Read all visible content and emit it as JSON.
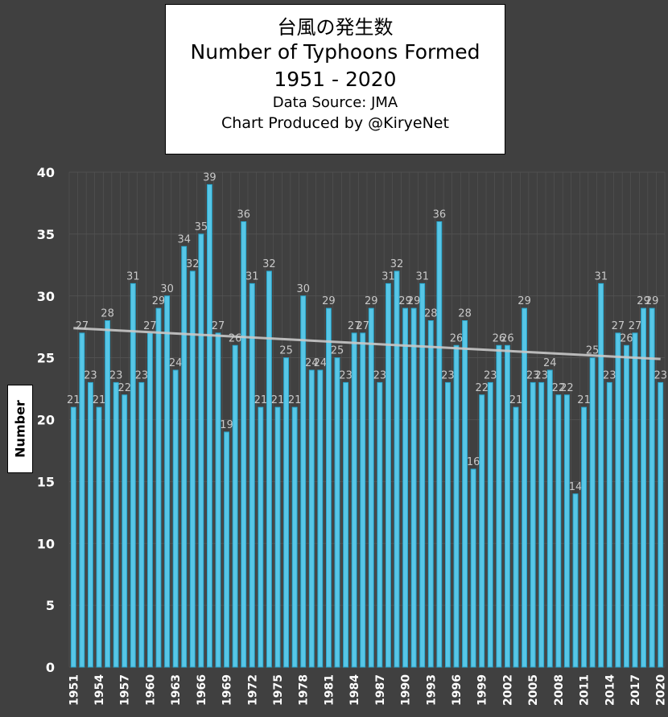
{
  "chart_data": {
    "type": "bar",
    "title": "台風の発生数",
    "title_lines": [
      "台風の発生数",
      "Number of Typhoons Formed",
      "1951 - 2020",
      "Data Source: JMA",
      "Chart Produced by @KiryeNet"
    ],
    "ylabel": "Number",
    "xlabel": "",
    "ylim": [
      0,
      40
    ],
    "yticks": [
      0,
      5,
      10,
      15,
      20,
      25,
      30,
      35,
      40
    ],
    "grid": true,
    "x": [
      1951,
      1952,
      1953,
      1954,
      1955,
      1956,
      1957,
      1958,
      1959,
      1960,
      1961,
      1962,
      1963,
      1964,
      1965,
      1966,
      1967,
      1968,
      1969,
      1970,
      1971,
      1972,
      1973,
      1974,
      1975,
      1976,
      1977,
      1978,
      1979,
      1980,
      1981,
      1982,
      1983,
      1984,
      1985,
      1986,
      1987,
      1988,
      1989,
      1990,
      1991,
      1992,
      1993,
      1994,
      1995,
      1996,
      1997,
      1998,
      1999,
      2000,
      2001,
      2002,
      2003,
      2004,
      2005,
      2006,
      2007,
      2008,
      2009,
      2010,
      2011,
      2012,
      2013,
      2014,
      2015,
      2016,
      2017,
      2018,
      2019,
      2020
    ],
    "xtick_labels": [
      "1951",
      "1954",
      "1957",
      "1960",
      "1963",
      "1966",
      "1969",
      "1972",
      "1975",
      "1978",
      "1981",
      "1984",
      "1987",
      "1990",
      "1993",
      "1996",
      "1999",
      "2002",
      "2005",
      "2008",
      "2011",
      "2014",
      "2017",
      "2020"
    ],
    "values": [
      21,
      27,
      23,
      21,
      28,
      23,
      22,
      31,
      23,
      27,
      29,
      30,
      24,
      34,
      32,
      35,
      39,
      27,
      19,
      26,
      36,
      31,
      21,
      32,
      21,
      25,
      21,
      30,
      24,
      24,
      29,
      25,
      23,
      27,
      27,
      29,
      23,
      31,
      32,
      29,
      29,
      31,
      28,
      36,
      23,
      26,
      28,
      16,
      22,
      23,
      26,
      26,
      21,
      29,
      23,
      23,
      24,
      22,
      22,
      14,
      21,
      25,
      31,
      23,
      27,
      26,
      27,
      29,
      29,
      23
    ],
    "trendline": {
      "start": [
        1951,
        27.4
      ],
      "end": [
        2020,
        24.9
      ]
    },
    "colors": {
      "bar": "#57c6e6",
      "bar_edge": "#2aa6cc",
      "background": "#404040",
      "grid": "#555555",
      "trend": "#c8c8c8",
      "label": "#c8c8c8"
    }
  }
}
